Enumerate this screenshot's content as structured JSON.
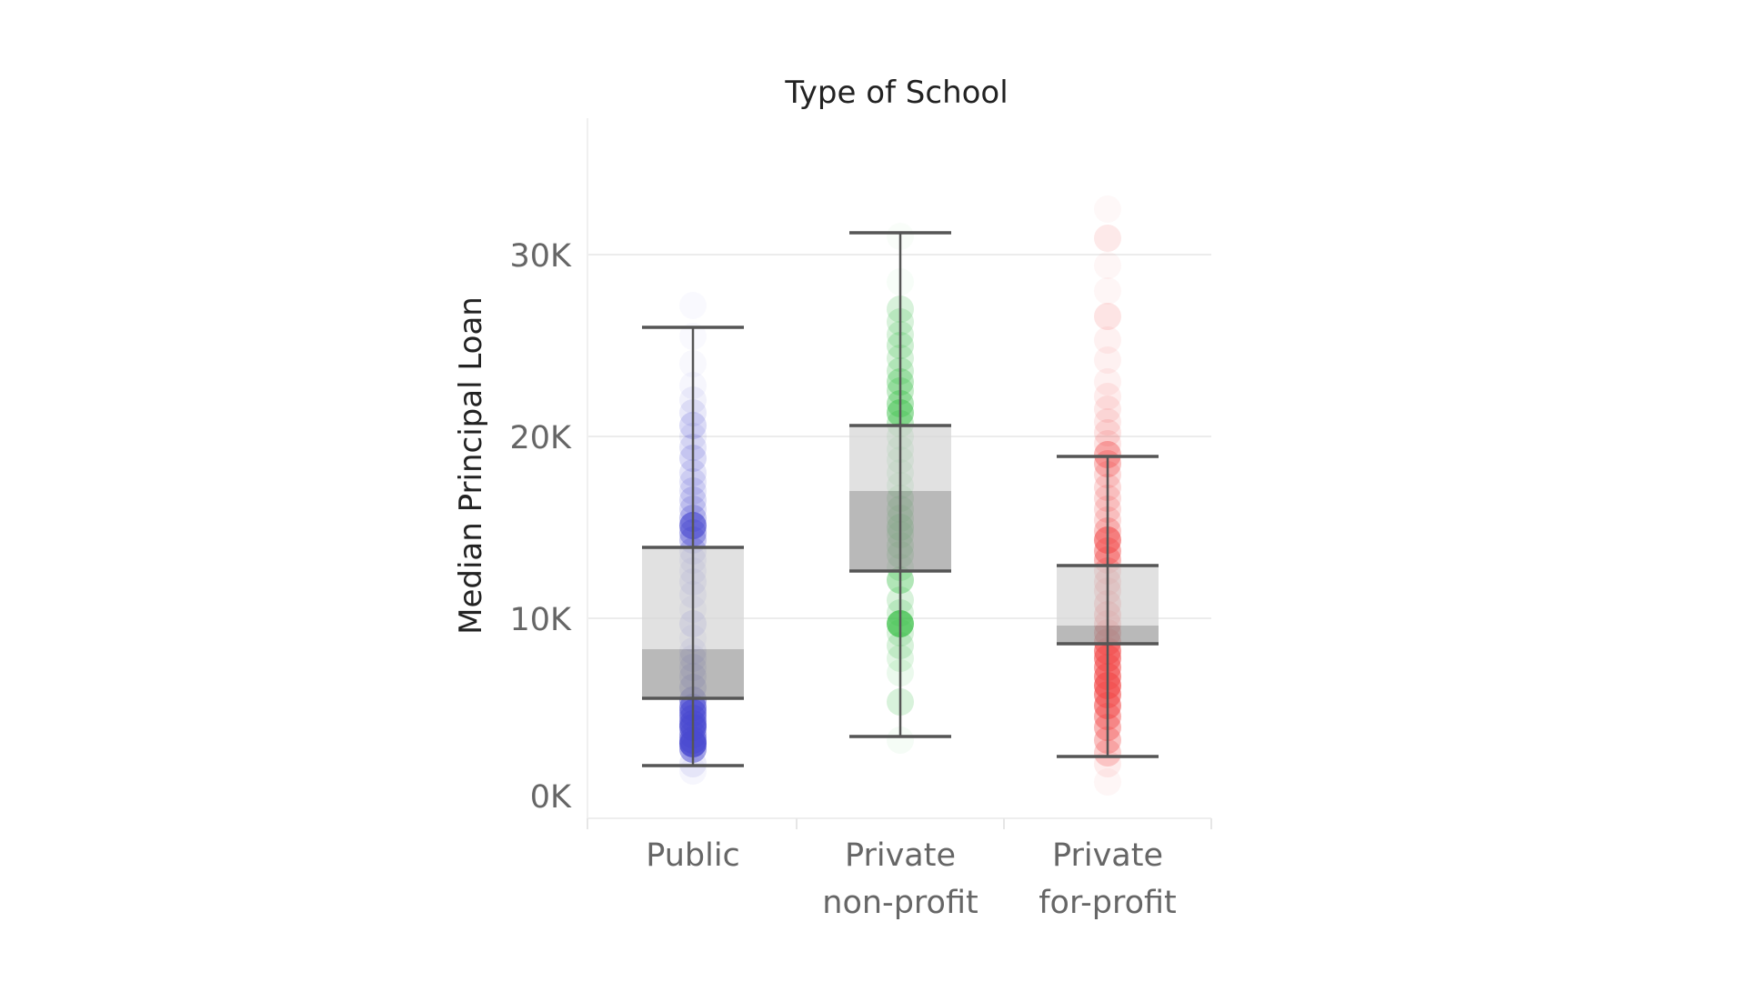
{
  "chart_data": {
    "type": "boxplot",
    "title": "Type of School",
    "xlabel": "",
    "ylabel": "Median Principal Loan",
    "ylim": [
      0,
      34000
    ],
    "yticks": [
      0,
      10000,
      20000,
      30000
    ],
    "ytick_labels": [
      "0K",
      "10K",
      "20K",
      "30K"
    ],
    "grid": true,
    "categories": [
      {
        "name": "Public",
        "label_lines": [
          "Public"
        ]
      },
      {
        "name": "Private non-profit",
        "label_lines": [
          "Private",
          "non-profit"
        ]
      },
      {
        "name": "Private for-profit",
        "label_lines": [
          "Private",
          "for-profit"
        ]
      }
    ],
    "boxes": [
      {
        "category": "Public",
        "color": "#4a4ad0",
        "whisker_low": 1900,
        "q1": 5600,
        "median": 8300,
        "q3": 13900,
        "whisker_high": 26000,
        "points": [
          [
            1600,
            0.05
          ],
          [
            2000,
            0.1
          ],
          [
            2800,
            0.5
          ],
          [
            3100,
            0.85
          ],
          [
            3300,
            0.6
          ],
          [
            3600,
            0.5
          ],
          [
            4000,
            0.7
          ],
          [
            4200,
            0.65
          ],
          [
            4500,
            0.55
          ],
          [
            4800,
            0.6
          ],
          [
            5100,
            0.6
          ],
          [
            5500,
            0.5
          ],
          [
            6200,
            0.3
          ],
          [
            6800,
            0.25
          ],
          [
            7300,
            0.2
          ],
          [
            7800,
            0.2
          ],
          [
            8200,
            0.2
          ],
          [
            8900,
            0.15
          ],
          [
            9700,
            0.3
          ],
          [
            10500,
            0.15
          ],
          [
            11300,
            0.2
          ],
          [
            12000,
            0.25
          ],
          [
            12600,
            0.2
          ],
          [
            13200,
            0.2
          ],
          [
            13700,
            0.25
          ],
          [
            14300,
            0.3
          ],
          [
            14700,
            0.4
          ],
          [
            15100,
            0.65
          ],
          [
            15500,
            0.3
          ],
          [
            16000,
            0.2
          ],
          [
            16500,
            0.2
          ],
          [
            17000,
            0.15
          ],
          [
            17500,
            0.15
          ],
          [
            18000,
            0.15
          ],
          [
            18800,
            0.2
          ],
          [
            19400,
            0.15
          ],
          [
            20000,
            0.1
          ],
          [
            20600,
            0.2
          ],
          [
            21300,
            0.12
          ],
          [
            22000,
            0.08
          ],
          [
            22800,
            0.05
          ],
          [
            24000,
            0.04
          ],
          [
            25500,
            0.03
          ],
          [
            27200,
            0.03
          ]
        ]
      },
      {
        "category": "Private non-profit",
        "color": "#3cc04a",
        "whisker_low": 3500,
        "q1": 12600,
        "median": 17000,
        "q3": 20600,
        "whisker_high": 31200,
        "points": [
          [
            3300,
            0.05
          ],
          [
            5400,
            0.2
          ],
          [
            7000,
            0.1
          ],
          [
            7800,
            0.15
          ],
          [
            8500,
            0.2
          ],
          [
            9200,
            0.2
          ],
          [
            9700,
            0.75
          ],
          [
            10300,
            0.2
          ],
          [
            11000,
            0.2
          ],
          [
            12100,
            0.4
          ],
          [
            12800,
            0.2
          ],
          [
            13500,
            0.3
          ],
          [
            14000,
            0.3
          ],
          [
            14600,
            0.3
          ],
          [
            15000,
            0.4
          ],
          [
            15500,
            0.3
          ],
          [
            16000,
            0.3
          ],
          [
            16600,
            0.3
          ],
          [
            17300,
            0.25
          ],
          [
            18000,
            0.25
          ],
          [
            18700,
            0.25
          ],
          [
            19300,
            0.25
          ],
          [
            20000,
            0.25
          ],
          [
            20700,
            0.3
          ],
          [
            21300,
            0.5
          ],
          [
            21800,
            0.4
          ],
          [
            22500,
            0.3
          ],
          [
            23000,
            0.35
          ],
          [
            23600,
            0.25
          ],
          [
            24300,
            0.2
          ],
          [
            25000,
            0.25
          ],
          [
            25600,
            0.2
          ],
          [
            26300,
            0.2
          ],
          [
            27000,
            0.2
          ],
          [
            28500,
            0.04
          ],
          [
            31000,
            0.03
          ]
        ]
      },
      {
        "category": "Private for-profit",
        "color": "#f24c4c",
        "whisker_low": 2400,
        "q1": 8600,
        "median": 9600,
        "q3": 12900,
        "whisker_high": 18900,
        "points": [
          [
            1000,
            0.05
          ],
          [
            2000,
            0.1
          ],
          [
            2600,
            0.25
          ],
          [
            3300,
            0.35
          ],
          [
            4000,
            0.4
          ],
          [
            4600,
            0.45
          ],
          [
            5200,
            0.6
          ],
          [
            5800,
            0.6
          ],
          [
            6300,
            0.7
          ],
          [
            6800,
            0.6
          ],
          [
            7300,
            0.55
          ],
          [
            7800,
            0.6
          ],
          [
            8200,
            0.6
          ],
          [
            8700,
            0.55
          ],
          [
            9200,
            0.5
          ],
          [
            9700,
            0.45
          ],
          [
            10200,
            0.45
          ],
          [
            10800,
            0.4
          ],
          [
            11500,
            0.35
          ],
          [
            12000,
            0.35
          ],
          [
            12600,
            0.35
          ],
          [
            13200,
            0.4
          ],
          [
            13700,
            0.45
          ],
          [
            14300,
            0.6
          ],
          [
            14800,
            0.3
          ],
          [
            15400,
            0.2
          ],
          [
            16000,
            0.2
          ],
          [
            16600,
            0.2
          ],
          [
            17200,
            0.2
          ],
          [
            17900,
            0.2
          ],
          [
            18500,
            0.35
          ],
          [
            19000,
            0.4
          ],
          [
            19600,
            0.15
          ],
          [
            20200,
            0.15
          ],
          [
            20800,
            0.12
          ],
          [
            21500,
            0.12
          ],
          [
            22200,
            0.1
          ],
          [
            23000,
            0.08
          ],
          [
            24200,
            0.08
          ],
          [
            25300,
            0.08
          ],
          [
            26600,
            0.15
          ],
          [
            28000,
            0.05
          ],
          [
            29400,
            0.05
          ],
          [
            30900,
            0.12
          ],
          [
            32500,
            0.04
          ]
        ]
      }
    ]
  }
}
